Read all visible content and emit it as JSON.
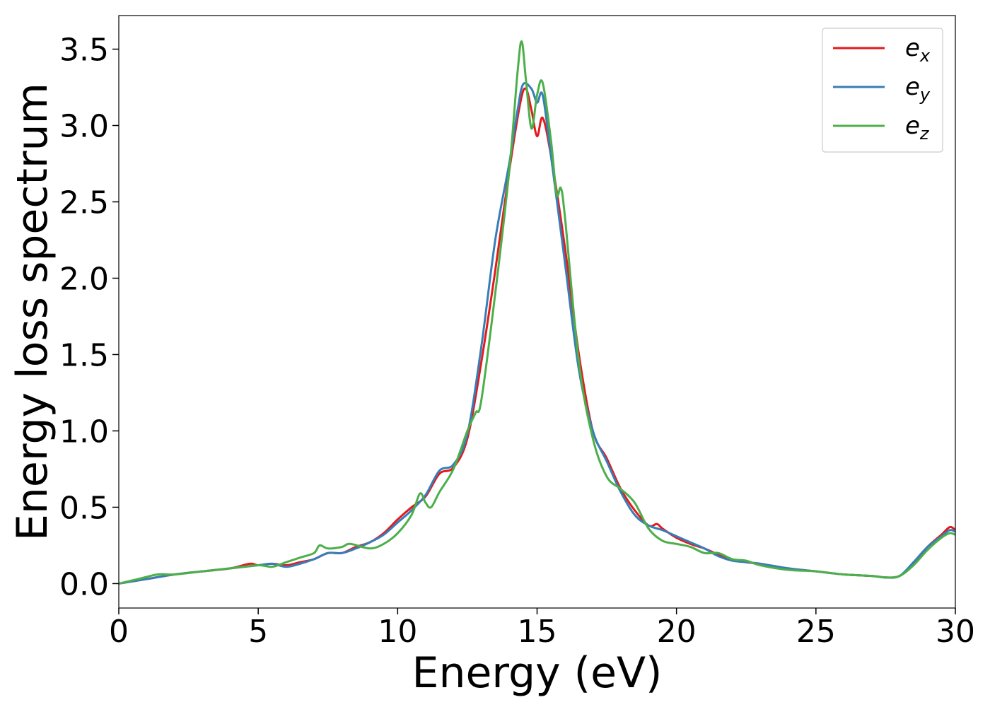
{
  "chart_data": {
    "type": "line",
    "title": "",
    "xlabel": "Energy (eV)",
    "ylabel": "Energy loss spectrum",
    "xlim": [
      0,
      30
    ],
    "ylim": [
      -0.16,
      3.72
    ],
    "xticks": [
      0,
      5,
      10,
      15,
      20,
      25,
      30
    ],
    "xtick_labels": [
      "0",
      "5",
      "10",
      "15",
      "20",
      "25",
      "30"
    ],
    "yticks": [
      0.0,
      0.5,
      1.0,
      1.5,
      2.0,
      2.5,
      3.0,
      3.5
    ],
    "ytick_labels": [
      "0.0",
      "0.5",
      "1.0",
      "1.5",
      "2.0",
      "2.5",
      "3.0",
      "3.5"
    ],
    "grid": false,
    "legend_position": "top-right",
    "series": [
      {
        "name": "e",
        "subscript": "x",
        "color": "#e41a1c",
        "points": [
          [
            0,
            0
          ],
          [
            1,
            0.03
          ],
          [
            2,
            0.06
          ],
          [
            3,
            0.08
          ],
          [
            4,
            0.1
          ],
          [
            4.7,
            0.13
          ],
          [
            5,
            0.12
          ],
          [
            5.5,
            0.13
          ],
          [
            6,
            0.12
          ],
          [
            6.5,
            0.14
          ],
          [
            7,
            0.16
          ],
          [
            7.5,
            0.2
          ],
          [
            8,
            0.2
          ],
          [
            8.5,
            0.24
          ],
          [
            9,
            0.27
          ],
          [
            9.5,
            0.33
          ],
          [
            10,
            0.42
          ],
          [
            10.5,
            0.5
          ],
          [
            11,
            0.57
          ],
          [
            11.5,
            0.72
          ],
          [
            12,
            0.76
          ],
          [
            12.5,
            0.95
          ],
          [
            13,
            1.45
          ],
          [
            13.5,
            2.05
          ],
          [
            14,
            2.7
          ],
          [
            14.4,
            3.15
          ],
          [
            14.6,
            3.24
          ],
          [
            14.8,
            3.1
          ],
          [
            15,
            2.93
          ],
          [
            15.2,
            3.05
          ],
          [
            15.5,
            2.8
          ],
          [
            16,
            2.2
          ],
          [
            16.5,
            1.5
          ],
          [
            17,
            1.0
          ],
          [
            17.5,
            0.82
          ],
          [
            18,
            0.62
          ],
          [
            18.5,
            0.48
          ],
          [
            19,
            0.38
          ],
          [
            19.3,
            0.39
          ],
          [
            19.5,
            0.36
          ],
          [
            20,
            0.3
          ],
          [
            20.5,
            0.26
          ],
          [
            21,
            0.23
          ],
          [
            21.5,
            0.19
          ],
          [
            22,
            0.16
          ],
          [
            22.5,
            0.14
          ],
          [
            23,
            0.13
          ],
          [
            24,
            0.1
          ],
          [
            25,
            0.08
          ],
          [
            26,
            0.06
          ],
          [
            27,
            0.05
          ],
          [
            27.5,
            0.04
          ],
          [
            28,
            0.05
          ],
          [
            28.5,
            0.13
          ],
          [
            29,
            0.24
          ],
          [
            29.5,
            0.32
          ],
          [
            29.8,
            0.37
          ],
          [
            30,
            0.35
          ]
        ]
      },
      {
        "name": "e",
        "subscript": "y",
        "color": "#377eb8",
        "points": [
          [
            0,
            0
          ],
          [
            1,
            0.03
          ],
          [
            2,
            0.06
          ],
          [
            3,
            0.08
          ],
          [
            4,
            0.1
          ],
          [
            5,
            0.12
          ],
          [
            5.5,
            0.13
          ],
          [
            6,
            0.11
          ],
          [
            6.5,
            0.13
          ],
          [
            7,
            0.16
          ],
          [
            7.5,
            0.2
          ],
          [
            8,
            0.2
          ],
          [
            8.5,
            0.23
          ],
          [
            9,
            0.27
          ],
          [
            9.5,
            0.32
          ],
          [
            10,
            0.4
          ],
          [
            10.5,
            0.48
          ],
          [
            11,
            0.58
          ],
          [
            11.5,
            0.74
          ],
          [
            12,
            0.78
          ],
          [
            12.5,
            0.98
          ],
          [
            13,
            1.55
          ],
          [
            13.5,
            2.25
          ],
          [
            14,
            2.75
          ],
          [
            14.3,
            3.1
          ],
          [
            14.5,
            3.27
          ],
          [
            14.8,
            3.24
          ],
          [
            15,
            3.15
          ],
          [
            15.2,
            3.2
          ],
          [
            15.5,
            2.8
          ],
          [
            16,
            2.1
          ],
          [
            16.5,
            1.4
          ],
          [
            17,
            1.0
          ],
          [
            17.5,
            0.8
          ],
          [
            18,
            0.6
          ],
          [
            18.5,
            0.45
          ],
          [
            19,
            0.38
          ],
          [
            19.5,
            0.35
          ],
          [
            20,
            0.31
          ],
          [
            20.5,
            0.27
          ],
          [
            21,
            0.23
          ],
          [
            21.5,
            0.18
          ],
          [
            22,
            0.15
          ],
          [
            22.5,
            0.14
          ],
          [
            23,
            0.13
          ],
          [
            24,
            0.1
          ],
          [
            25,
            0.08
          ],
          [
            26,
            0.06
          ],
          [
            27,
            0.05
          ],
          [
            27.5,
            0.04
          ],
          [
            28,
            0.05
          ],
          [
            28.5,
            0.14
          ],
          [
            29,
            0.24
          ],
          [
            29.5,
            0.31
          ],
          [
            29.8,
            0.35
          ],
          [
            30,
            0.34
          ]
        ]
      },
      {
        "name": "e",
        "subscript": "z",
        "color": "#4daf4a",
        "points": [
          [
            0,
            0
          ],
          [
            0.7,
            0.03
          ],
          [
            1.4,
            0.06
          ],
          [
            2,
            0.06
          ],
          [
            3,
            0.08
          ],
          [
            4,
            0.1
          ],
          [
            5,
            0.12
          ],
          [
            5.5,
            0.11
          ],
          [
            6,
            0.14
          ],
          [
            6.5,
            0.17
          ],
          [
            7,
            0.2
          ],
          [
            7.2,
            0.25
          ],
          [
            7.5,
            0.23
          ],
          [
            8,
            0.24
          ],
          [
            8.3,
            0.26
          ],
          [
            9,
            0.23
          ],
          [
            9.5,
            0.26
          ],
          [
            10,
            0.33
          ],
          [
            10.5,
            0.45
          ],
          [
            10.8,
            0.59
          ],
          [
            11,
            0.53
          ],
          [
            11.2,
            0.5
          ],
          [
            11.5,
            0.6
          ],
          [
            12,
            0.75
          ],
          [
            12.5,
            1.0
          ],
          [
            12.8,
            1.12
          ],
          [
            13,
            1.2
          ],
          [
            13.5,
            1.9
          ],
          [
            14,
            2.7
          ],
          [
            14.3,
            3.35
          ],
          [
            14.45,
            3.55
          ],
          [
            14.6,
            3.3
          ],
          [
            14.8,
            2.98
          ],
          [
            15,
            3.2
          ],
          [
            15.2,
            3.28
          ],
          [
            15.5,
            2.9
          ],
          [
            15.7,
            2.55
          ],
          [
            15.85,
            2.59
          ],
          [
            16,
            2.4
          ],
          [
            16.5,
            1.45
          ],
          [
            17,
            0.95
          ],
          [
            17.5,
            0.7
          ],
          [
            18,
            0.62
          ],
          [
            18.5,
            0.53
          ],
          [
            19,
            0.36
          ],
          [
            19.5,
            0.28
          ],
          [
            20,
            0.26
          ],
          [
            20.5,
            0.24
          ],
          [
            21,
            0.2
          ],
          [
            21.5,
            0.2
          ],
          [
            22,
            0.16
          ],
          [
            22.5,
            0.15
          ],
          [
            23,
            0.12
          ],
          [
            24,
            0.09
          ],
          [
            25,
            0.08
          ],
          [
            26,
            0.06
          ],
          [
            27,
            0.05
          ],
          [
            27.5,
            0.04
          ],
          [
            28,
            0.05
          ],
          [
            28.5,
            0.12
          ],
          [
            29,
            0.22
          ],
          [
            29.5,
            0.3
          ],
          [
            29.8,
            0.33
          ],
          [
            30,
            0.32
          ]
        ]
      }
    ]
  }
}
